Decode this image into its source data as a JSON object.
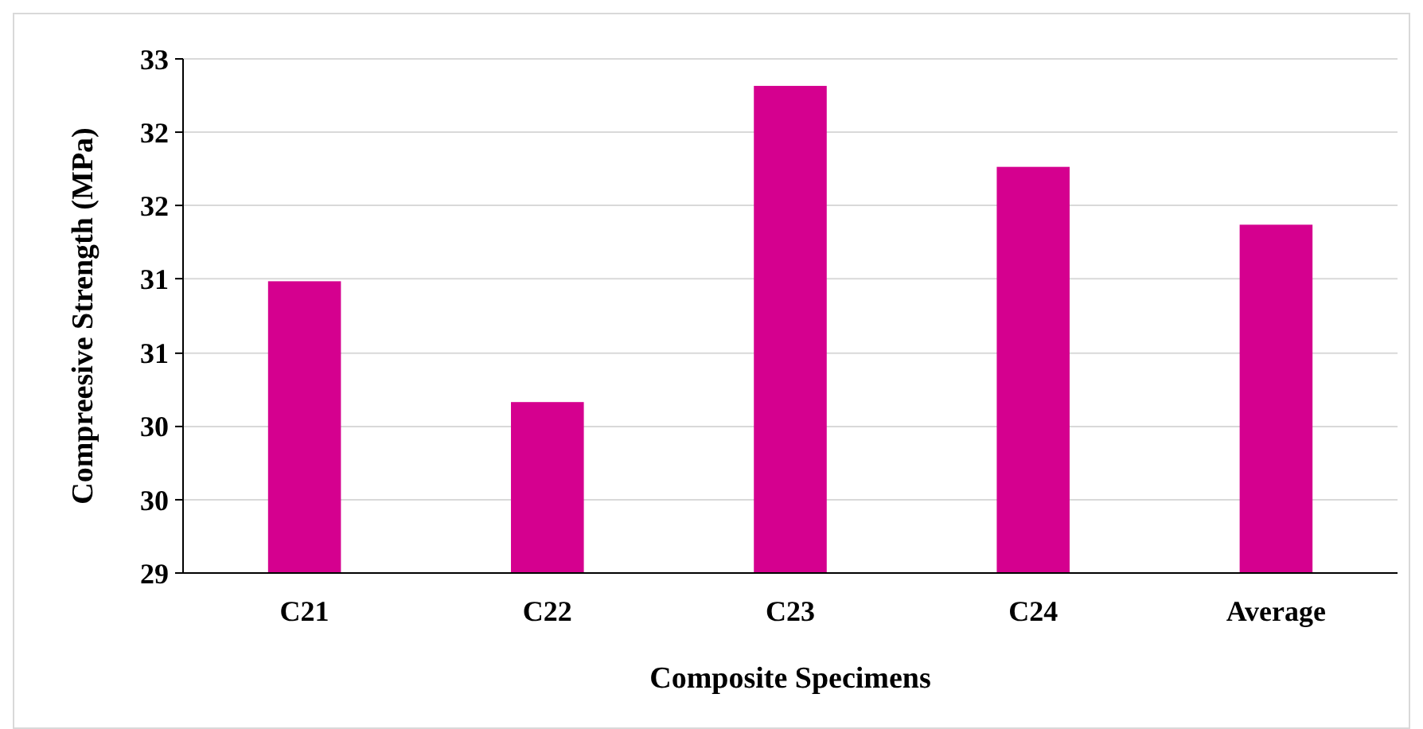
{
  "chart_data": {
    "type": "bar",
    "xlabel": "Composite Specimens",
    "ylabel": "Compreesive Strength (MPa)",
    "categories": [
      "C21",
      "C22",
      "C23",
      "C24",
      "Average"
    ],
    "values": [
      31.27,
      30.33,
      32.79,
      32.16,
      31.71
    ],
    "color": "#d5008f",
    "ylim": [
      29,
      33
    ],
    "yticks": [
      29,
      {
        "value": 29.57,
        "label": "30"
      },
      {
        "value": 30.14,
        "label": "30"
      },
      {
        "value": 30.71,
        "label": "31"
      },
      {
        "value": 31.29,
        "label": "31"
      },
      {
        "value": 31.86,
        "label": "32"
      },
      {
        "value": 32.43,
        "label": "32"
      },
      33
    ],
    "grid": "y"
  }
}
